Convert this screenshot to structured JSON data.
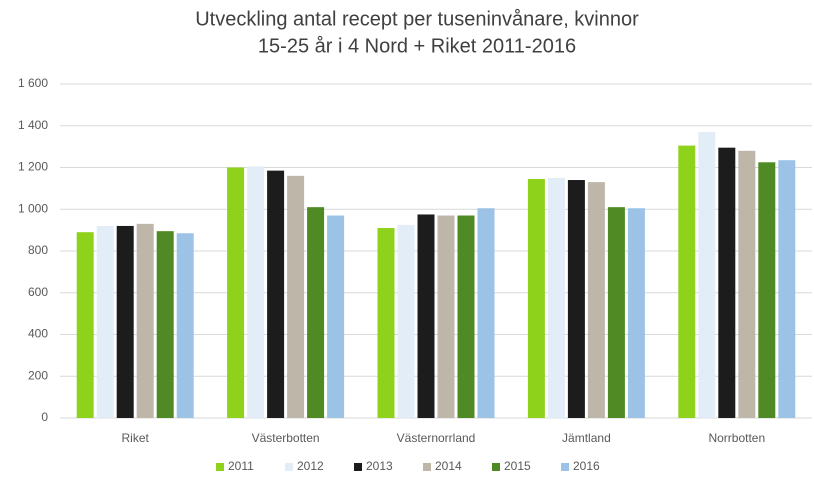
{
  "chart_data": {
    "type": "bar",
    "title": [
      "Utveckling antal recept per tuseninvånare, kvinnor",
      "15-25 år i 4 Nord + Riket 2011-2016"
    ],
    "categories": [
      "Riket",
      "Västerbotten",
      "Västernorrland",
      "Jämtland",
      "Norrbotten"
    ],
    "series": [
      {
        "name": "2011",
        "color": "#8fd21c",
        "values": [
          890,
          1200,
          910,
          1145,
          1305
        ]
      },
      {
        "name": "2012",
        "color": "#e2edf8",
        "values": [
          920,
          1205,
          925,
          1150,
          1370
        ]
      },
      {
        "name": "2013",
        "color": "#1c1c1c",
        "values": [
          920,
          1185,
          975,
          1140,
          1295
        ]
      },
      {
        "name": "2014",
        "color": "#bfb6aa",
        "values": [
          930,
          1160,
          970,
          1130,
          1280
        ]
      },
      {
        "name": "2015",
        "color": "#4f8a25",
        "values": [
          895,
          1010,
          970,
          1010,
          1225
        ]
      },
      {
        "name": "2016",
        "color": "#9cc3e6",
        "values": [
          885,
          970,
          1005,
          1005,
          1235
        ]
      }
    ],
    "ylim": [
      0,
      1600
    ],
    "yticks": [
      0,
      200,
      400,
      600,
      800,
      {
        "value": 1000,
        "label": "1 000"
      },
      {
        "value": 1200,
        "label": "1 200"
      },
      {
        "value": 1400,
        "label": "1 400"
      },
      {
        "value": 1600,
        "label": "1 600"
      }
    ],
    "grid": true,
    "legend": "bottom"
  }
}
